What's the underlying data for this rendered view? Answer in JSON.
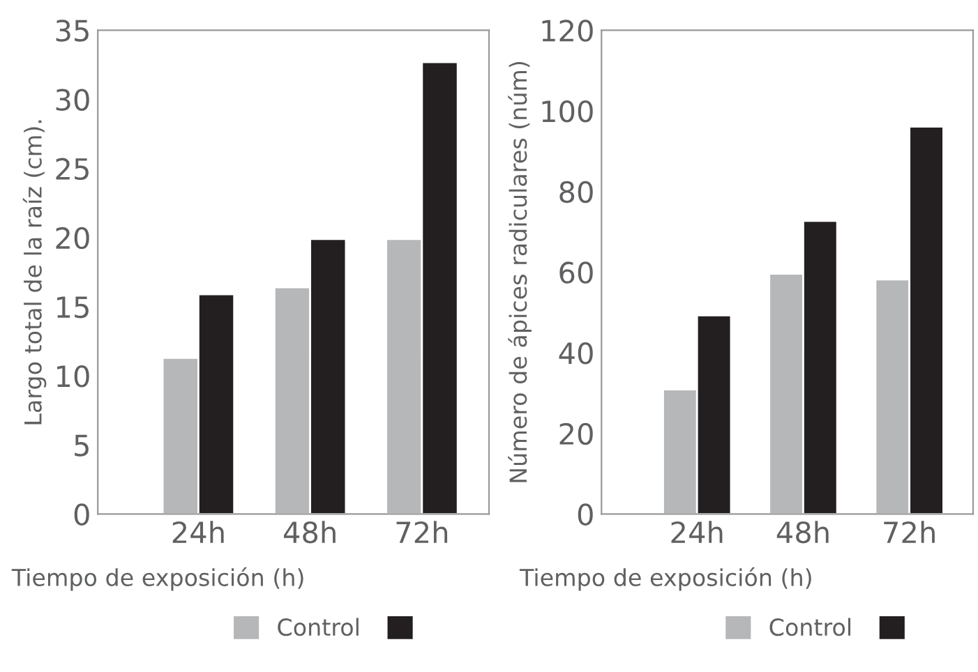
{
  "chart_data": [
    {
      "type": "bar",
      "categories": [
        "24h",
        "48h",
        "72h"
      ],
      "xlabel": "Tiempo de exposición (h)",
      "ylabel": "Largo total de la raíz (cm).",
      "ylim": [
        0,
        35
      ],
      "yticks": [
        0,
        5,
        10,
        15,
        20,
        25,
        30,
        35
      ],
      "grid": false,
      "legend": "bottom",
      "series": [
        {
          "name": "Control",
          "color": "#b6b7b9",
          "values": [
            11.3,
            16.4,
            19.9
          ]
        },
        {
          "color": "#231f20",
          "values": [
            15.9,
            19.9,
            32.7
          ]
        }
      ]
    },
    {
      "type": "bar",
      "categories": [
        "24h",
        "48h",
        "72h"
      ],
      "xlabel": "Tiempo de exposición (h)",
      "ylabel": "Número de ápices radiculares (núm)",
      "ylim": [
        0,
        120
      ],
      "yticks": [
        0,
        20,
        40,
        60,
        80,
        100,
        120
      ],
      "grid": false,
      "legend": "bottom",
      "series": [
        {
          "name": "Control",
          "color": "#b6b7b9",
          "values": [
            30.9,
            59.6,
            58.2
          ]
        },
        {
          "color": "#231f20",
          "values": [
            49.3,
            72.7,
            96.1
          ]
        }
      ]
    }
  ]
}
